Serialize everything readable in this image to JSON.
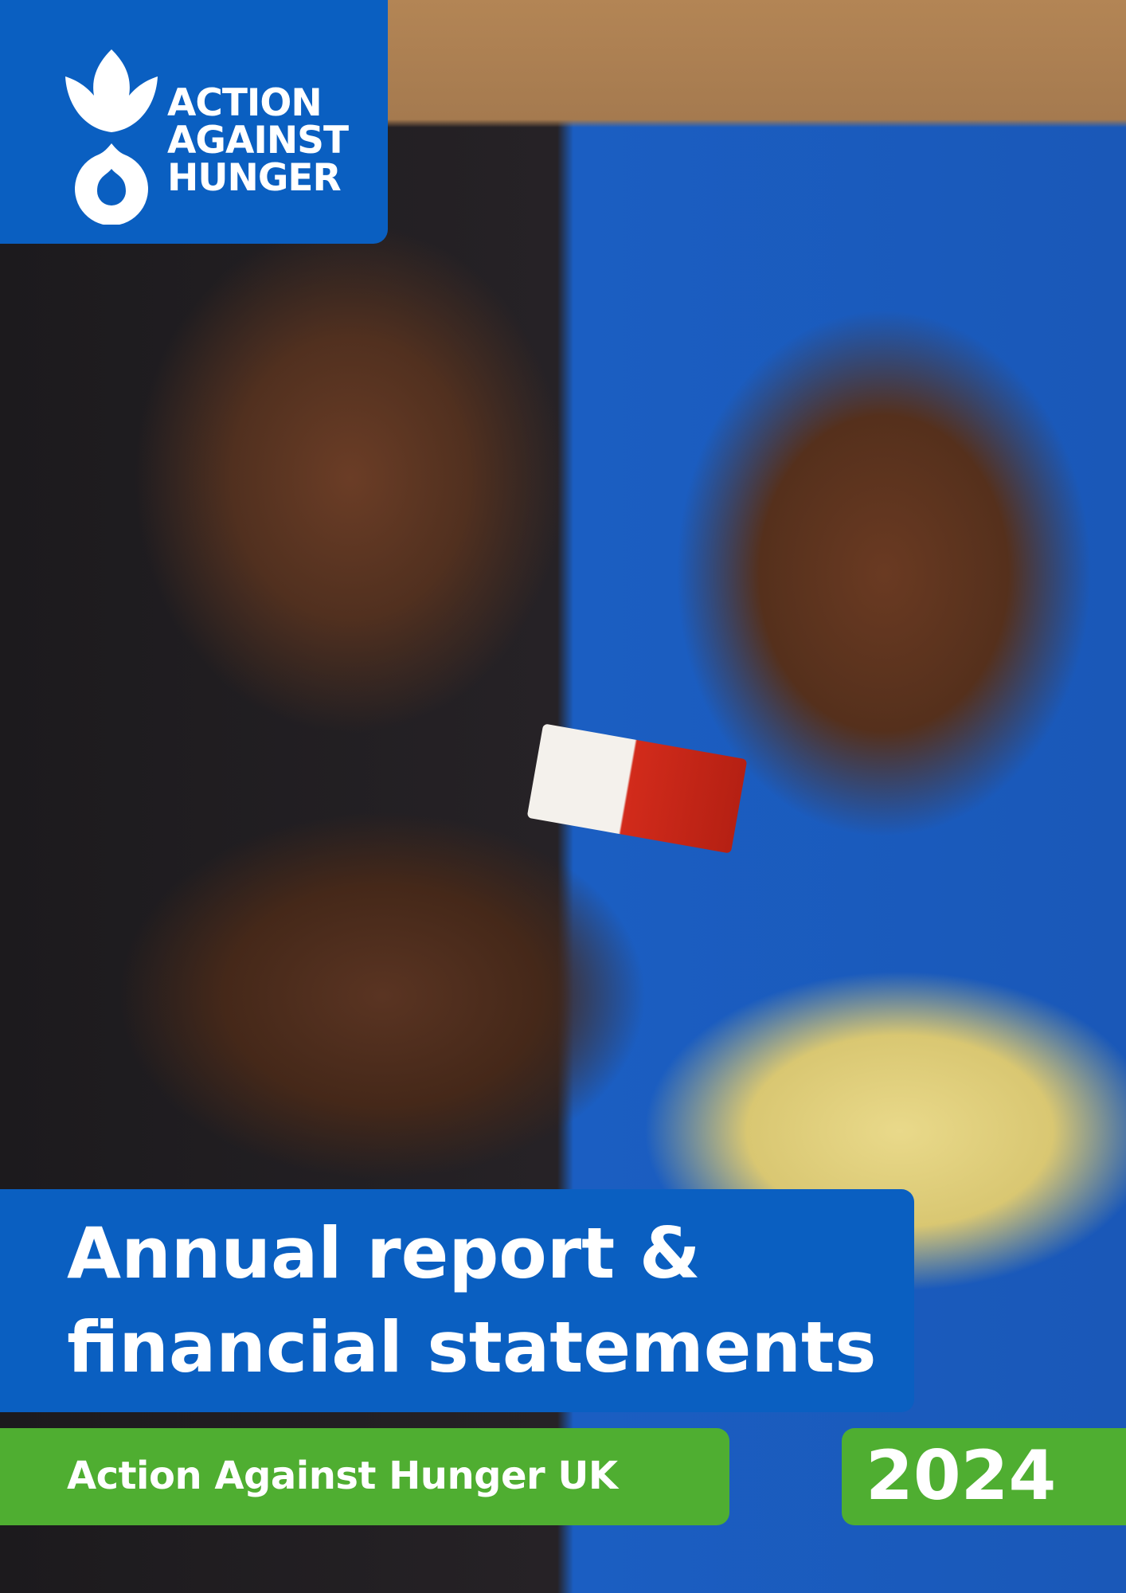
{
  "cover": {
    "logo": {
      "line1": "ACTION",
      "line2": "AGAINST",
      "line3": "HUNGER"
    },
    "title_line1": "Annual report &",
    "title_line2": "financial statements",
    "subtitle": "Action Against Hunger UK",
    "year": "2024",
    "photo": "woman feeding a baby from a therapeutic food sachet"
  },
  "colors": {
    "brand_blue": "#0a5fc1",
    "brand_green": "#4fae31"
  }
}
